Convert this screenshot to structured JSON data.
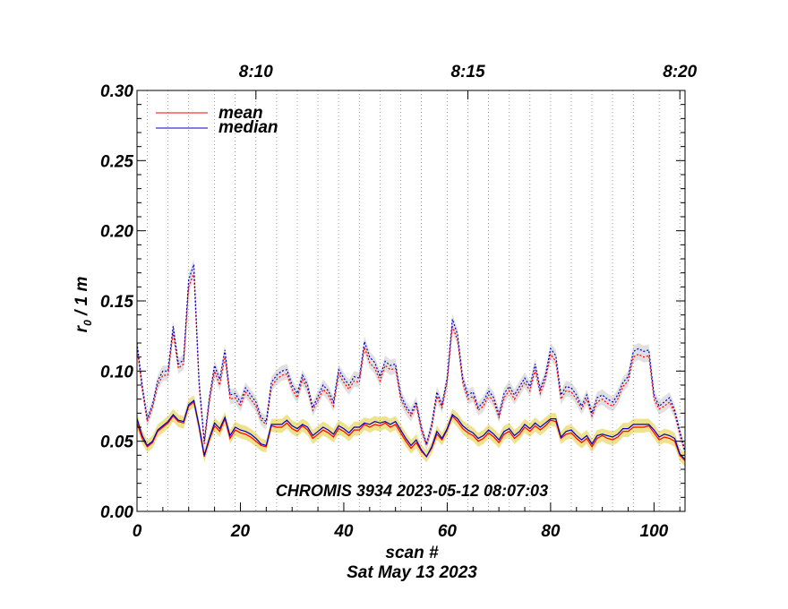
{
  "chart_data": {
    "type": "line",
    "xlabel": "scan #",
    "ylabel_main": "r",
    "ylabel_sub": "0",
    "ylabel_rest": " / 1 m",
    "footer_date": "Sat May 13 2023",
    "annotation": "CHROMIS 3934 2023-05-12 08:07:03",
    "xlim": [
      0,
      106
    ],
    "ylim": [
      0.0,
      0.3
    ],
    "x_ticks": [
      0,
      20,
      40,
      60,
      80,
      100
    ],
    "x_tick_labels": [
      "0",
      "20",
      "40",
      "60",
      "80",
      "100"
    ],
    "y_ticks": [
      0.0,
      0.05,
      0.1,
      0.15,
      0.2,
      0.25,
      0.3
    ],
    "y_tick_labels": [
      "0.00",
      "0.05",
      "0.10",
      "0.15",
      "0.20",
      "0.25",
      "0.30"
    ],
    "top_axis": {
      "ticks": [
        23,
        64,
        105
      ],
      "labels": [
        "8:10",
        "8:15",
        "8:20"
      ]
    },
    "vertical_gridlines_x": [
      2,
      6,
      10,
      15,
      19,
      23,
      27,
      31,
      35,
      39,
      43,
      47,
      51,
      55,
      60,
      64,
      68,
      72,
      76,
      80,
      84,
      88,
      92,
      96,
      101,
      105
    ],
    "legend": {
      "placement": "top-left",
      "entries": [
        {
          "label": "mean",
          "color": "#ff0000"
        },
        {
          "label": "median",
          "color": "#0000cc"
        }
      ]
    },
    "colors": {
      "mean": "#ff0000",
      "median": "#0000cc",
      "low_band": "#eee28c",
      "high_band": "#e0e0e0"
    },
    "series": [
      {
        "name": "mean",
        "values": [
          0.063,
          0.052,
          0.046,
          0.049,
          0.057,
          0.06,
          0.063,
          0.068,
          0.064,
          0.063,
          0.075,
          0.078,
          0.06,
          0.039,
          0.051,
          0.061,
          0.057,
          0.066,
          0.052,
          0.058,
          0.056,
          0.055,
          0.053,
          0.05,
          0.047,
          0.046,
          0.061,
          0.06,
          0.06,
          0.063,
          0.059,
          0.057,
          0.061,
          0.058,
          0.052,
          0.055,
          0.058,
          0.056,
          0.053,
          0.059,
          0.057,
          0.054,
          0.058,
          0.058,
          0.062,
          0.06,
          0.062,
          0.061,
          0.063,
          0.06,
          0.062,
          0.056,
          0.05,
          0.045,
          0.049,
          0.043,
          0.039,
          0.045,
          0.055,
          0.051,
          0.058,
          0.068,
          0.064,
          0.059,
          0.056,
          0.054,
          0.05,
          0.052,
          0.056,
          0.053,
          0.049,
          0.055,
          0.057,
          0.052,
          0.055,
          0.06,
          0.057,
          0.061,
          0.058,
          0.061,
          0.065,
          0.064,
          0.052,
          0.055,
          0.056,
          0.052,
          0.049,
          0.052,
          0.046,
          0.052,
          0.054,
          0.052,
          0.051,
          0.053,
          0.057,
          0.057,
          0.06,
          0.06,
          0.06,
          0.061,
          0.056,
          0.051,
          0.053,
          0.052,
          0.05,
          0.04,
          0.036
        ]
      },
      {
        "name": "median",
        "values": [
          0.066,
          0.054,
          0.047,
          0.05,
          0.058,
          0.061,
          0.064,
          0.069,
          0.065,
          0.064,
          0.076,
          0.079,
          0.061,
          0.04,
          0.052,
          0.063,
          0.059,
          0.067,
          0.054,
          0.06,
          0.058,
          0.057,
          0.055,
          0.052,
          0.048,
          0.047,
          0.062,
          0.062,
          0.062,
          0.065,
          0.061,
          0.059,
          0.062,
          0.06,
          0.054,
          0.057,
          0.06,
          0.058,
          0.055,
          0.061,
          0.059,
          0.056,
          0.06,
          0.06,
          0.063,
          0.062,
          0.064,
          0.063,
          0.064,
          0.062,
          0.064,
          0.058,
          0.052,
          0.047,
          0.051,
          0.044,
          0.039,
          0.046,
          0.057,
          0.052,
          0.059,
          0.069,
          0.066,
          0.061,
          0.058,
          0.056,
          0.052,
          0.054,
          0.058,
          0.055,
          0.051,
          0.057,
          0.059,
          0.054,
          0.057,
          0.062,
          0.059,
          0.063,
          0.06,
          0.063,
          0.066,
          0.066,
          0.053,
          0.057,
          0.058,
          0.054,
          0.051,
          0.054,
          0.048,
          0.054,
          0.055,
          0.054,
          0.053,
          0.055,
          0.059,
          0.059,
          0.062,
          0.062,
          0.062,
          0.062,
          0.058,
          0.053,
          0.055,
          0.054,
          0.052,
          0.041,
          0.037
        ]
      },
      {
        "name": "mean_high",
        "values": [
          0.117,
          0.087,
          0.064,
          0.074,
          0.09,
          0.097,
          0.097,
          0.128,
          0.102,
          0.105,
          0.16,
          0.17,
          0.09,
          0.048,
          0.078,
          0.1,
          0.09,
          0.11,
          0.08,
          0.081,
          0.075,
          0.085,
          0.08,
          0.075,
          0.065,
          0.062,
          0.089,
          0.094,
          0.097,
          0.098,
          0.087,
          0.081,
          0.094,
          0.087,
          0.072,
          0.079,
          0.087,
          0.083,
          0.075,
          0.098,
          0.092,
          0.087,
          0.093,
          0.092,
          0.117,
          0.106,
          0.102,
          0.093,
          0.104,
          0.101,
          0.102,
          0.08,
          0.073,
          0.068,
          0.076,
          0.058,
          0.047,
          0.06,
          0.082,
          0.074,
          0.092,
          0.132,
          0.122,
          0.092,
          0.08,
          0.082,
          0.072,
          0.075,
          0.083,
          0.078,
          0.067,
          0.081,
          0.086,
          0.08,
          0.086,
          0.092,
          0.086,
          0.101,
          0.084,
          0.094,
          0.112,
          0.107,
          0.08,
          0.086,
          0.085,
          0.08,
          0.073,
          0.08,
          0.068,
          0.078,
          0.08,
          0.077,
          0.075,
          0.08,
          0.089,
          0.093,
          0.11,
          0.112,
          0.11,
          0.111,
          0.08,
          0.073,
          0.075,
          0.078,
          0.07,
          0.055,
          0.042
        ]
      },
      {
        "name": "median_high",
        "values": [
          0.12,
          0.09,
          0.066,
          0.076,
          0.093,
          0.1,
          0.1,
          0.132,
          0.105,
          0.108,
          0.165,
          0.176,
          0.093,
          0.05,
          0.081,
          0.104,
          0.094,
          0.115,
          0.083,
          0.084,
          0.078,
          0.088,
          0.083,
          0.078,
          0.067,
          0.064,
          0.092,
          0.097,
          0.1,
          0.101,
          0.09,
          0.084,
          0.097,
          0.09,
          0.074,
          0.082,
          0.09,
          0.086,
          0.078,
          0.101,
          0.095,
          0.09,
          0.096,
          0.095,
          0.121,
          0.11,
          0.106,
          0.096,
          0.107,
          0.104,
          0.105,
          0.083,
          0.075,
          0.07,
          0.078,
          0.06,
          0.048,
          0.062,
          0.085,
          0.076,
          0.095,
          0.137,
          0.126,
          0.095,
          0.083,
          0.085,
          0.074,
          0.078,
          0.086,
          0.081,
          0.069,
          0.084,
          0.089,
          0.083,
          0.089,
          0.095,
          0.089,
          0.105,
          0.087,
          0.097,
          0.116,
          0.111,
          0.083,
          0.089,
          0.088,
          0.083,
          0.075,
          0.083,
          0.07,
          0.081,
          0.083,
          0.08,
          0.078,
          0.083,
          0.092,
          0.096,
          0.114,
          0.116,
          0.114,
          0.115,
          0.083,
          0.075,
          0.078,
          0.081,
          0.072,
          0.057,
          0.043
        ]
      }
    ]
  }
}
